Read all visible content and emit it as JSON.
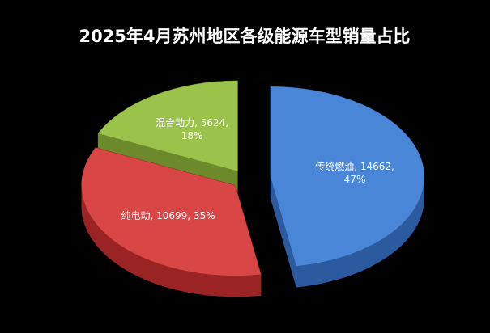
{
  "chart_data": {
    "type": "pie3d",
    "title": "2025年4月苏州地区各级能源车型销量占比",
    "values": [
      14662,
      10699,
      5624
    ],
    "value_labels": [
      "传统燃油, 14662, 47%",
      "纯电动, 10699, 35%",
      "混合动力, 5624, 18%"
    ],
    "colors": [
      "#4a86d8",
      "#d94646",
      "#9bc24a"
    ],
    "side_colors": [
      "#2b5a9e",
      "#9a2424",
      "#6c8a2c"
    ]
  }
}
